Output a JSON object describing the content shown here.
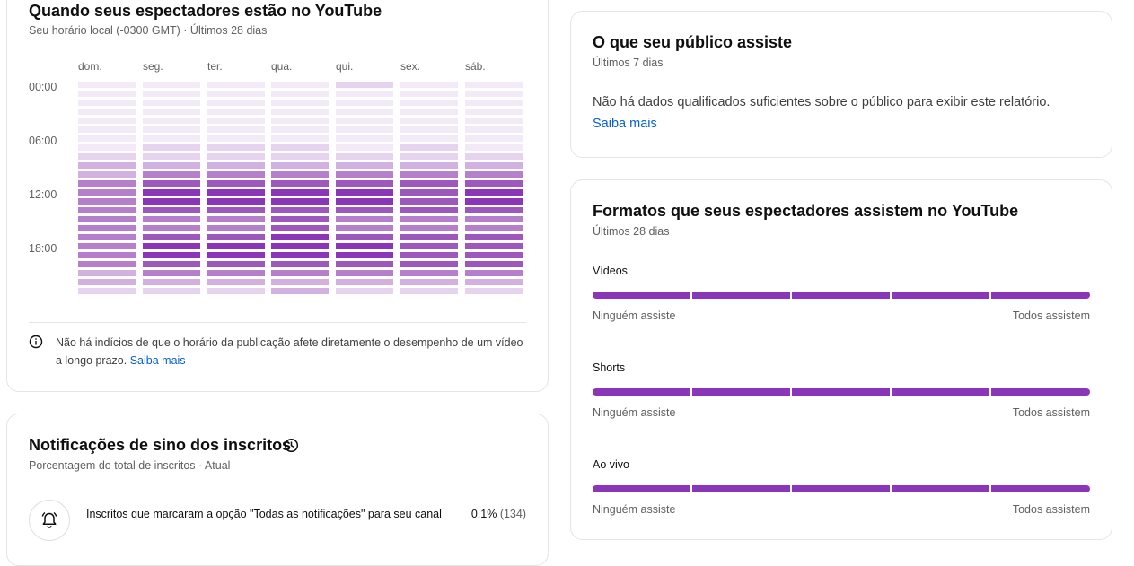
{
  "when_card": {
    "title": "Quando seus espectadores estão no YouTube",
    "subtitle": "Seu horário local (-0300 GMT) · Últimos 28 dias",
    "days": [
      "dom.",
      "seg.",
      "ter.",
      "qua.",
      "qui.",
      "sex.",
      "sáb."
    ],
    "times": [
      "00:00",
      "06:00",
      "12:00",
      "18:00"
    ],
    "heat_colors": [
      "#f3eaf7",
      "#e6d3ee",
      "#d2b1e0",
      "#b57fcc",
      "#9e57bd",
      "#8b35b8"
    ],
    "heatmap_levels": [
      [
        0,
        0,
        0,
        0,
        0,
        0,
        0,
        0,
        1,
        2,
        2,
        3,
        3,
        3,
        3,
        3,
        3,
        3,
        3,
        3,
        3,
        2,
        2,
        1
      ],
      [
        0,
        0,
        0,
        0,
        0,
        0,
        0,
        1,
        1,
        2,
        3,
        4,
        5,
        5,
        4,
        3,
        3,
        4,
        5,
        5,
        4,
        3,
        2,
        1
      ],
      [
        0,
        0,
        0,
        0,
        0,
        0,
        0,
        1,
        1,
        2,
        3,
        4,
        5,
        5,
        4,
        3,
        3,
        4,
        5,
        5,
        4,
        3,
        2,
        1
      ],
      [
        0,
        0,
        0,
        0,
        0,
        0,
        0,
        1,
        1,
        2,
        3,
        4,
        5,
        5,
        4,
        4,
        4,
        5,
        5,
        5,
        4,
        3,
        2,
        2
      ],
      [
        1,
        0,
        0,
        0,
        0,
        0,
        0,
        0,
        1,
        2,
        3,
        4,
        5,
        5,
        4,
        3,
        3,
        4,
        5,
        5,
        4,
        3,
        2,
        1
      ],
      [
        0,
        0,
        0,
        0,
        0,
        0,
        0,
        1,
        1,
        2,
        3,
        4,
        4,
        4,
        4,
        3,
        3,
        4,
        4,
        4,
        4,
        3,
        2,
        1
      ],
      [
        0,
        0,
        0,
        0,
        0,
        0,
        0,
        0,
        1,
        2,
        3,
        4,
        5,
        5,
        4,
        3,
        3,
        4,
        4,
        4,
        4,
        3,
        2,
        1
      ]
    ],
    "info_text": "Não há indícios de que o horário da publicação afete diretamente o desempenho de um vídeo a longo prazo.",
    "info_link": "Saiba mais",
    "info_icon": "info-icon"
  },
  "bell_card": {
    "title": "Notificações de sino dos inscritos",
    "subtitle": "Porcentagem do total de inscritos · Atual",
    "title_icon": "clock-icon",
    "row_icon": "bell-icon",
    "row_text": "Inscritos que marcaram a opção \"Todas as notificações\" para seu canal",
    "row_percent": "0,1%",
    "row_count": "(134)"
  },
  "watch_card": {
    "title": "O que seu público assiste",
    "subtitle": "Últimos 7 dias",
    "message": "Não há dados qualificados suficientes sobre o público para exibir este relatório.",
    "link": "Saiba mais"
  },
  "formats_card": {
    "title": "Formatos que seus espectadores assistem no YouTube",
    "subtitle": "Últimos 28 dias",
    "bar_color": "#8b35b8",
    "formats": [
      {
        "label": "Vídeos",
        "min": "Ninguém assiste",
        "max": "Todos assistem"
      },
      {
        "label": "Shorts",
        "min": "Ninguém assiste",
        "max": "Todos assistem"
      },
      {
        "label": "Ao vivo",
        "min": "Ninguém assiste",
        "max": "Todos assistem"
      }
    ]
  }
}
